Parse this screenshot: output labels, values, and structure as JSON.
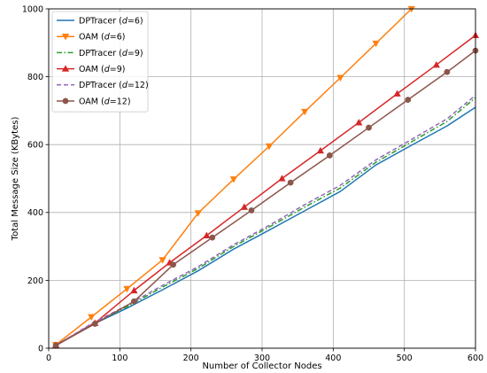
{
  "chart_data": {
    "type": "line",
    "title": "",
    "xlabel": "Number of Collector Nodes",
    "ylabel": "Total Message Size (KBytes)",
    "xlim": [
      0,
      600
    ],
    "ylim": [
      0,
      1000
    ],
    "xticks": [
      0,
      100,
      200,
      300,
      400,
      500,
      600
    ],
    "yticks": [
      0,
      200,
      400,
      600,
      800,
      1000
    ],
    "grid": true,
    "legend_position": "top-left",
    "series": [
      {
        "name_prefix": "DPTracer (",
        "name_var": "d",
        "name_suffix": "=6)",
        "color": "#1f77b4",
        "dash": "solid",
        "marker": "none",
        "x": [
          10,
          60,
          110,
          160,
          210,
          260,
          310,
          360,
          410,
          460,
          510,
          560,
          600
        ],
        "y": [
          8,
          68,
          118,
          172,
          228,
          292,
          348,
          405,
          462,
          540,
          598,
          655,
          710
        ]
      },
      {
        "name_prefix": "OAM (",
        "name_var": "d",
        "name_suffix": "=6)",
        "color": "#ff7f0e",
        "dash": "solid",
        "marker": "triangle-down",
        "x": [
          10,
          60,
          110,
          160,
          210,
          260,
          310,
          360,
          410,
          460,
          510
        ],
        "y": [
          10,
          92,
          175,
          260,
          398,
          498,
          595,
          697,
          797,
          898,
          1000
        ]
      },
      {
        "name_prefix": "DPTracer (",
        "name_var": "d",
        "name_suffix": "=9)",
        "color": "#2ca02c",
        "dash": "dashdot",
        "marker": "none",
        "x": [
          10,
          60,
          110,
          160,
          210,
          260,
          310,
          360,
          410,
          460,
          510,
          560,
          600
        ],
        "y": [
          8,
          70,
          122,
          180,
          235,
          300,
          357,
          416,
          472,
          548,
          608,
          668,
          738
        ]
      },
      {
        "name_prefix": "OAM (",
        "name_var": "d",
        "name_suffix": "=9)",
        "color": "#d62728",
        "dash": "solid",
        "marker": "triangle-up",
        "x": [
          10,
          65,
          120,
          170,
          222,
          275,
          328,
          382,
          436,
          490,
          545,
          600
        ],
        "y": [
          9,
          74,
          170,
          252,
          332,
          416,
          500,
          582,
          665,
          750,
          835,
          922
        ]
      },
      {
        "name_prefix": "DPTracer (",
        "name_var": "d",
        "name_suffix": "=12)",
        "color": "#9467bd",
        "dash": "dashed",
        "marker": "none",
        "x": [
          10,
          60,
          110,
          160,
          210,
          260,
          310,
          360,
          410,
          460,
          510,
          560,
          600
        ],
        "y": [
          8,
          72,
          126,
          185,
          240,
          305,
          362,
          423,
          480,
          555,
          615,
          676,
          745
        ]
      },
      {
        "name_prefix": "OAM (",
        "name_var": "d",
        "name_suffix": "=12)",
        "color": "#8c564b",
        "dash": "solid",
        "marker": "circle",
        "x": [
          10,
          65,
          120,
          175,
          230,
          285,
          340,
          395,
          450,
          505,
          560,
          600
        ],
        "y": [
          8,
          72,
          138,
          246,
          326,
          406,
          488,
          568,
          650,
          732,
          814,
          877
        ]
      }
    ]
  }
}
